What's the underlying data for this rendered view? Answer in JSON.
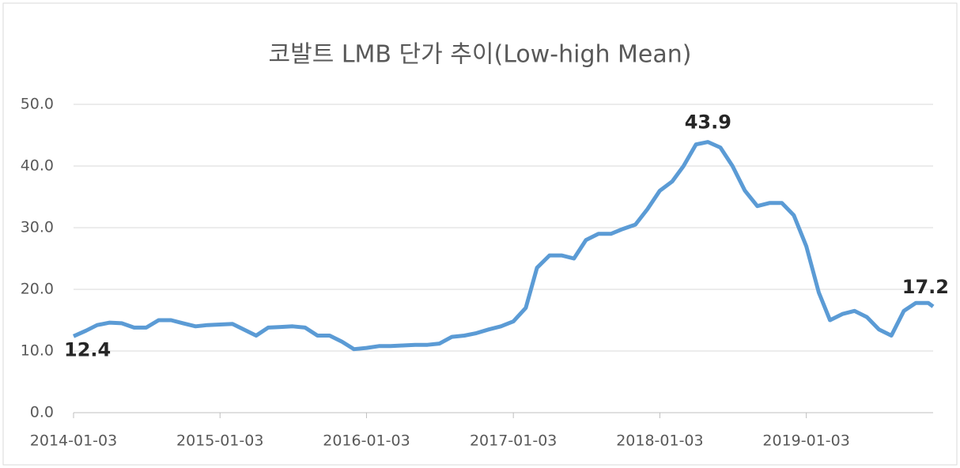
{
  "chart_data": {
    "type": "line",
    "title": "코발트 LMB 단가 추이(Low-high  Mean)",
    "x": [
      "2014-01-03",
      "2014-02-03",
      "2014-03-03",
      "2014-04-03",
      "2014-05-03",
      "2014-06-03",
      "2014-07-03",
      "2014-08-03",
      "2014-09-03",
      "2014-10-03",
      "2014-11-03",
      "2014-12-03",
      "2015-01-03",
      "2015-02-03",
      "2015-03-03",
      "2015-04-03",
      "2015-05-03",
      "2015-06-03",
      "2015-07-03",
      "2015-08-03",
      "2015-09-03",
      "2015-10-03",
      "2015-11-03",
      "2015-12-03",
      "2016-01-03",
      "2016-02-03",
      "2016-03-03",
      "2016-04-03",
      "2016-05-03",
      "2016-06-03",
      "2016-07-03",
      "2016-08-03",
      "2016-09-03",
      "2016-10-03",
      "2016-11-03",
      "2016-12-03",
      "2017-01-03",
      "2017-02-03",
      "2017-03-03",
      "2017-04-03",
      "2017-05-03",
      "2017-06-03",
      "2017-07-03",
      "2017-08-03",
      "2017-09-03",
      "2017-10-03",
      "2017-11-03",
      "2017-12-03",
      "2018-01-03",
      "2018-02-03",
      "2018-03-03",
      "2018-04-03",
      "2018-05-03",
      "2018-06-03",
      "2018-07-03",
      "2018-08-03",
      "2018-09-03",
      "2018-10-03",
      "2018-11-03",
      "2018-12-03",
      "2019-01-03",
      "2019-02-03",
      "2019-03-03",
      "2019-04-03",
      "2019-05-03",
      "2019-06-03",
      "2019-07-03",
      "2019-08-03",
      "2019-09-03",
      "2019-10-03",
      "2019-11-03",
      "2019-11-15"
    ],
    "values": [
      12.4,
      13.3,
      14.2,
      14.6,
      14.5,
      13.8,
      13.8,
      15.0,
      15.0,
      14.5,
      14.0,
      14.2,
      14.3,
      14.4,
      13.5,
      12.5,
      13.8,
      13.9,
      14.0,
      13.8,
      12.5,
      12.5,
      11.5,
      10.3,
      10.5,
      10.8,
      10.8,
      10.9,
      11.0,
      11.0,
      11.2,
      12.3,
      12.5,
      12.9,
      13.5,
      14.0,
      14.8,
      17.0,
      23.5,
      25.5,
      25.5,
      25.0,
      28.0,
      29.0,
      29.0,
      29.8,
      30.5,
      33.0,
      36.0,
      37.5,
      40.0,
      43.5,
      43.9,
      43.0,
      40.0,
      36.0,
      33.5,
      34.0,
      34.0,
      32.0,
      27.0,
      19.5,
      15.0,
      16.0,
      16.5,
      15.5,
      13.5,
      12.5,
      16.5,
      17.8,
      17.8,
      17.2
    ],
    "color": "#5b9bd5",
    "xlim": [
      "2014-01-03",
      "2019-11-15"
    ],
    "xticks": [
      "2014-01-03",
      "2015-01-03",
      "2016-01-03",
      "2017-01-03",
      "2018-01-03",
      "2019-01-03"
    ],
    "ylim": [
      0,
      50
    ],
    "yticks": [
      {
        "value": 0,
        "label": "0.0"
      },
      {
        "value": 10,
        "label": "10.0"
      },
      {
        "value": 20,
        "label": "20.0"
      },
      {
        "value": 30,
        "label": "30.0"
      },
      {
        "value": 40,
        "label": "40.0"
      },
      {
        "value": 50,
        "label": "50.0"
      }
    ],
    "grid": true
  }
}
